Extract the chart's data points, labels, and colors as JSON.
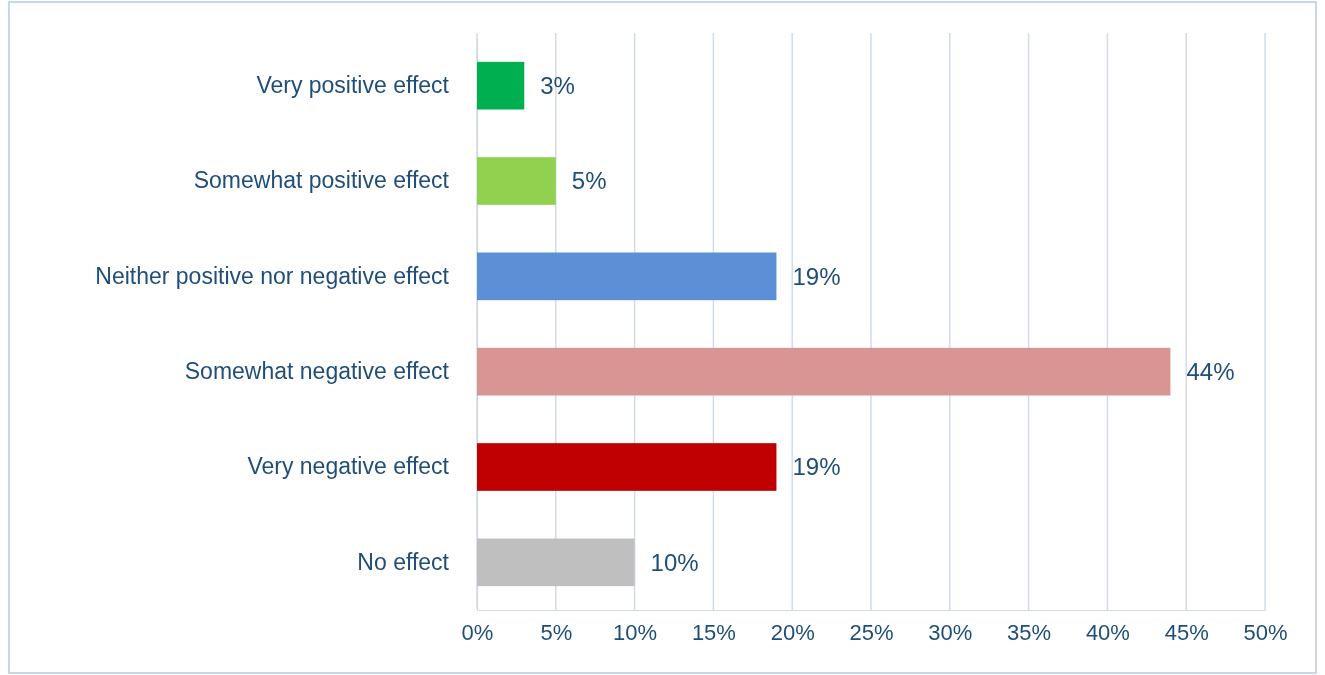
{
  "chart_data": {
    "type": "bar",
    "orientation": "horizontal",
    "categories": [
      "Very positive effect",
      "Somewhat positive effect",
      "Neither positive nor negative effect",
      "Somewhat negative effect",
      "Very negative effect",
      "No effect"
    ],
    "values": [
      3,
      5,
      19,
      44,
      19,
      10
    ],
    "colors": [
      "#00b050",
      "#92d050",
      "#5b8fd6",
      "#d99594",
      "#c00000",
      "#bfbfbf"
    ],
    "value_labels": [
      "3%",
      "5%",
      "19%",
      "44%",
      "19%",
      "10%"
    ],
    "xlim": [
      0,
      50
    ],
    "xticks": [
      {
        "value": 0,
        "label": "0%"
      },
      {
        "value": 5,
        "label": "5%"
      },
      {
        "value": 10,
        "label": "10%"
      },
      {
        "value": 15,
        "label": "15%"
      },
      {
        "value": 20,
        "label": "20%"
      },
      {
        "value": 25,
        "label": "25%"
      },
      {
        "value": 30,
        "label": "30%"
      },
      {
        "value": 35,
        "label": "35%"
      },
      {
        "value": 40,
        "label": "40%"
      },
      {
        "value": 45,
        "label": "45%"
      },
      {
        "value": 50,
        "label": "50%"
      }
    ],
    "grid": "x"
  }
}
